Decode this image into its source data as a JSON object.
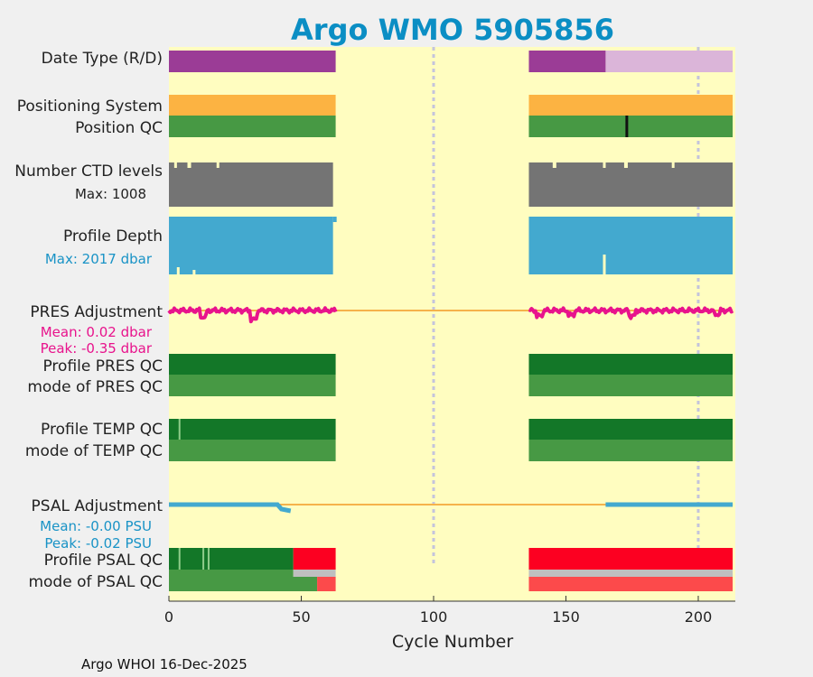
{
  "chart_data": {
    "type": "table",
    "title": "Argo WMO 5905856",
    "xlabel": "Cycle Number",
    "xlim": [
      0,
      214
    ],
    "xticks": [
      0,
      50,
      100,
      150,
      200
    ],
    "grid_x": [
      100,
      200
    ],
    "footer": "Argo WHOI 16-Dec-2025",
    "colors": {
      "background": "#fffdc0",
      "delayed": "#9b3c96",
      "realtime": "#dbb5d9",
      "orange": "#fcb342",
      "qc_good": "#479944",
      "qc_dark": "#137728",
      "ctd": "#747474",
      "depth": "#43a9cf",
      "pres_adj": "#e8138c",
      "bad": "#fc0021",
      "bad_light": "#fc4a4b",
      "grey": "#bfbfbf",
      "zero_line": "#f5b24b"
    },
    "rows": {
      "date_type": {
        "label": "Date Type (R/D)",
        "segments": [
          [
            0,
            63,
            "delayed"
          ],
          [
            136,
            165,
            "delayed"
          ],
          [
            165,
            213,
            "realtime"
          ]
        ]
      },
      "positioning": {
        "label": "Positioning System",
        "segments": [
          [
            0,
            63,
            "orange"
          ],
          [
            136,
            213,
            "orange"
          ]
        ]
      },
      "position_qc": {
        "label": "Position QC",
        "segments": [
          [
            0,
            63,
            "qc_good"
          ],
          [
            136,
            213,
            "qc_good"
          ]
        ],
        "marks": [
          173
        ]
      },
      "ctd": {
        "label": "Number CTD levels",
        "sub": "Max: 1008",
        "segments": [
          [
            0,
            62
          ],
          [
            136,
            213
          ]
        ]
      },
      "depth": {
        "label": "Profile Depth",
        "sub": "Max: 2017 dbar",
        "segments": [
          [
            0,
            62
          ],
          [
            136,
            213
          ]
        ]
      },
      "pres_adj": {
        "label": "PRES Adjustment",
        "mean": "Mean: 0.02 dbar",
        "peak": "Peak: -0.35 dbar",
        "range": [
          [
            0,
            63
          ],
          [
            136,
            213
          ]
        ]
      },
      "pres_qc": {
        "label": "Profile PRES QC",
        "segments": [
          [
            0,
            63,
            "qc_dark"
          ],
          [
            136,
            213,
            "qc_dark"
          ]
        ]
      },
      "pres_mode": {
        "label": "mode of PRES QC",
        "segments": [
          [
            0,
            63,
            "qc_good"
          ],
          [
            136,
            213,
            "qc_good"
          ]
        ]
      },
      "temp_qc": {
        "label": "Profile TEMP QC",
        "segments": [
          [
            0,
            63,
            "qc_dark"
          ],
          [
            136,
            213,
            "qc_dark"
          ]
        ],
        "marks": [
          4
        ]
      },
      "temp_mode": {
        "label": "mode of TEMP QC",
        "segments": [
          [
            0,
            63,
            "qc_good"
          ],
          [
            136,
            213,
            "qc_good"
          ]
        ]
      },
      "psal_adj": {
        "label": "PSAL Adjustment",
        "mean": "Mean: -0.00 PSU",
        "peak": "Peak: -0.02 PSU",
        "range": [
          [
            0,
            46
          ],
          [
            165,
            213
          ]
        ]
      },
      "psal_qc": {
        "label": "Profile PSAL QC",
        "segments": [
          [
            0,
            47,
            "qc_dark"
          ],
          [
            47,
            63,
            "bad"
          ],
          [
            136,
            213,
            "bad"
          ]
        ],
        "marks": [
          4,
          13,
          15
        ]
      },
      "psal_mode": {
        "label": "mode of PSAL QC",
        "segments": [
          [
            0,
            47,
            "qc_good"
          ],
          [
            47,
            63,
            "grey"
          ],
          [
            136,
            213,
            "grey"
          ]
        ],
        "segments2": [
          [
            0,
            56,
            "qc_good"
          ],
          [
            56,
            63,
            "bad_light"
          ],
          [
            136,
            213,
            "bad_light"
          ]
        ]
      }
    }
  }
}
